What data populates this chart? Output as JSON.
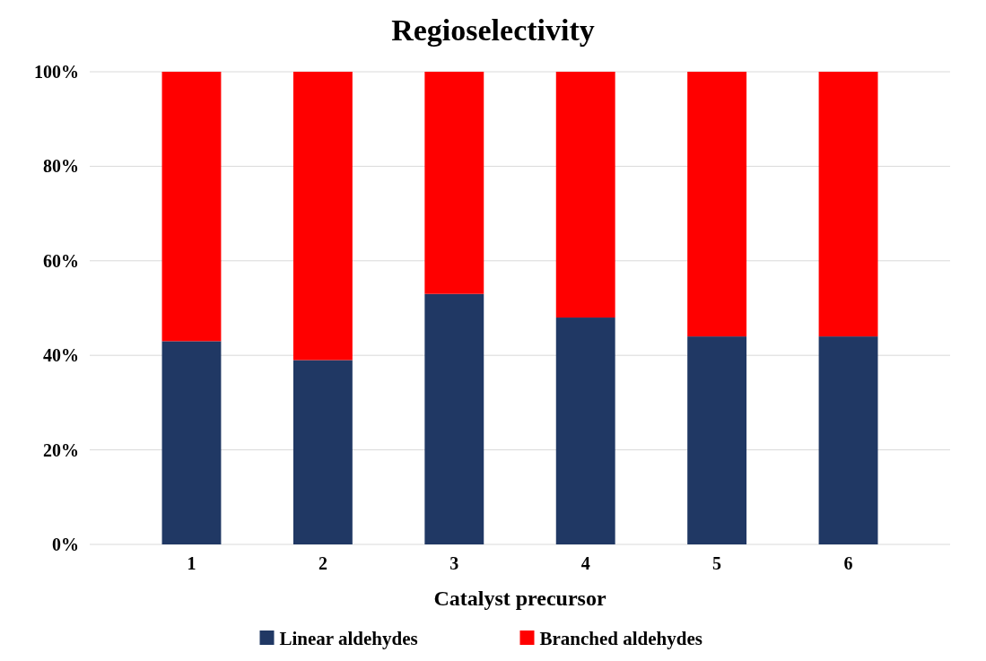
{
  "chart_data": {
    "type": "bar",
    "title": "Regioselectivity",
    "xlabel": "Catalyst precursor",
    "categories": [
      "1",
      "2",
      "3",
      "4",
      "5",
      "6"
    ],
    "series": [
      {
        "name": "Linear aldehydes",
        "color": "#203864",
        "values": [
          43,
          39,
          53,
          48,
          44,
          44
        ]
      },
      {
        "name": "Branched aldehydes",
        "color": "#ff0000",
        "values": [
          57,
          61,
          47,
          52,
          56,
          56
        ]
      }
    ],
    "stacked": true,
    "ylim": [
      0,
      100
    ],
    "yticks": [
      {
        "value": 0,
        "label": "0%"
      },
      {
        "value": 20,
        "label": "20%"
      },
      {
        "value": 40,
        "label": "40%"
      },
      {
        "value": 60,
        "label": "60%"
      },
      {
        "value": 80,
        "label": "80%"
      },
      {
        "value": 100,
        "label": "100%"
      }
    ],
    "grid": "y",
    "legend": "bottom"
  }
}
